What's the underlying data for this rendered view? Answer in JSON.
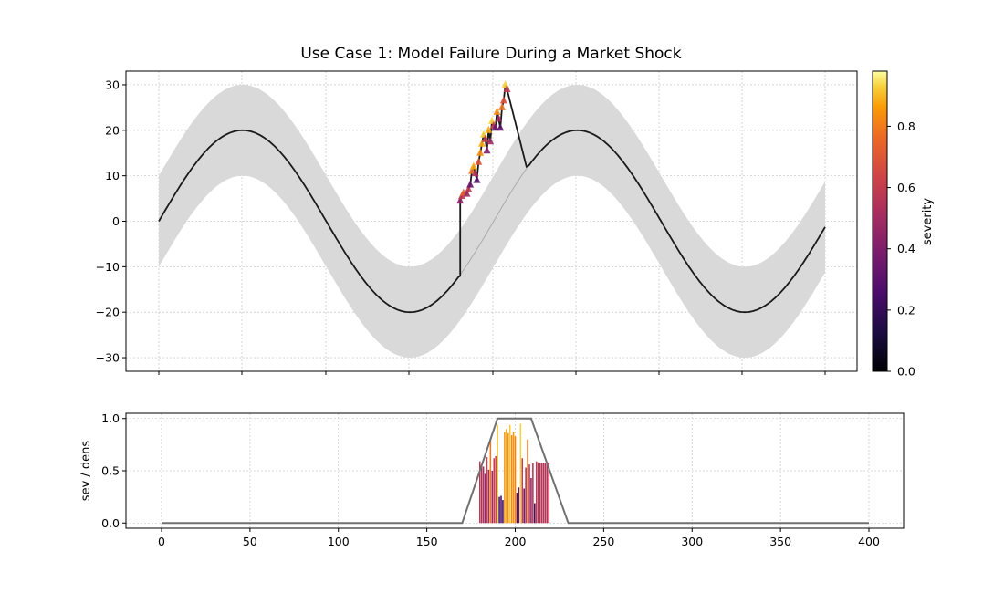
{
  "chart_data": [
    {
      "type": "line",
      "title": "Use Case 1: Model Failure During a Market Shock",
      "xlabel": "",
      "ylabel": "",
      "xlim": [
        -20,
        420
      ],
      "ylim": [
        -33,
        33
      ],
      "xticks": [
        0,
        50,
        100,
        150,
        200,
        250,
        300,
        350,
        400
      ],
      "yticks": [
        -30,
        -20,
        -10,
        0,
        10,
        20,
        30
      ],
      "ytick_labels": [
        "−30",
        "−20",
        "−10",
        "0",
        "10",
        "20",
        "30"
      ],
      "grid": true,
      "baseline": {
        "amplitude": 20,
        "period": 200,
        "x_range": [
          0,
          398
        ],
        "band_half_width": 10
      },
      "shock": {
        "x_start": 180,
        "x_end": 219,
        "start_value": 5,
        "end_value": 30.5,
        "return_value": 12
      },
      "band_color": "#d9d9d9",
      "line_color": "#1a1a1a",
      "marker": "triangle",
      "marker_points": [
        {
          "x": 180,
          "y": 4.5,
          "s": 0.45
        },
        {
          "x": 181,
          "y": 5.5,
          "s": 0.6
        },
        {
          "x": 182,
          "y": 6.2,
          "s": 0.75
        },
        {
          "x": 184,
          "y": 6.0,
          "s": 0.5
        },
        {
          "x": 185,
          "y": 7.0,
          "s": 0.6
        },
        {
          "x": 186,
          "y": 8.0,
          "s": 0.35
        },
        {
          "x": 187,
          "y": 11.0,
          "s": 0.8
        },
        {
          "x": 188,
          "y": 12.0,
          "s": 0.9
        },
        {
          "x": 189,
          "y": 10.5,
          "s": 0.55
        },
        {
          "x": 190,
          "y": 9.0,
          "s": 0.3
        },
        {
          "x": 191,
          "y": 13.0,
          "s": 0.7
        },
        {
          "x": 192,
          "y": 15.0,
          "s": 0.85
        },
        {
          "x": 193,
          "y": 17.0,
          "s": 0.9
        },
        {
          "x": 194,
          "y": 19.0,
          "s": 0.95
        },
        {
          "x": 195,
          "y": 18.0,
          "s": 0.6
        },
        {
          "x": 196,
          "y": 15.5,
          "s": 0.4
        },
        {
          "x": 197,
          "y": 20.0,
          "s": 0.9
        },
        {
          "x": 198,
          "y": 17.5,
          "s": 0.5
        },
        {
          "x": 199,
          "y": 22.0,
          "s": 0.95
        },
        {
          "x": 200,
          "y": 21.0,
          "s": 0.6
        },
        {
          "x": 201,
          "y": 20.5,
          "s": 0.35
        },
        {
          "x": 202,
          "y": 24.0,
          "s": 0.85
        },
        {
          "x": 203,
          "y": 22.5,
          "s": 0.5
        },
        {
          "x": 204,
          "y": 20.5,
          "s": 0.3
        },
        {
          "x": 205,
          "y": 25.0,
          "s": 0.8
        },
        {
          "x": 206,
          "y": 26.5,
          "s": 0.7
        },
        {
          "x": 207,
          "y": 30.0,
          "s": 0.95
        },
        {
          "x": 208,
          "y": 29.0,
          "s": 0.6
        }
      ],
      "colorbar": {
        "label": "severity",
        "min": 0.0,
        "max": 0.98,
        "ticks": [
          0.0,
          0.2,
          0.4,
          0.6,
          0.8
        ],
        "tick_labels": [
          "0.0",
          "0.2",
          "0.4",
          "0.6",
          "0.8"
        ],
        "colormap": "inferno"
      }
    },
    {
      "type": "bar",
      "title": "",
      "xlabel": "",
      "ylabel": "sev / dens",
      "xlim": [
        -20,
        420
      ],
      "ylim": [
        -0.05,
        1.05
      ],
      "xticks": [
        0,
        50,
        100,
        150,
        200,
        250,
        300,
        350,
        400
      ],
      "xtick_labels": [
        "0",
        "50",
        "100",
        "150",
        "200",
        "250",
        "300",
        "350",
        "400"
      ],
      "yticks": [
        0.0,
        0.5,
        1.0
      ],
      "ytick_labels": [
        "0.0",
        "0.5",
        "1.0"
      ],
      "grid": true,
      "bars": {
        "x": [
          180,
          181,
          182,
          183,
          184,
          185,
          186,
          187,
          188,
          189,
          190,
          191,
          192,
          193,
          194,
          195,
          196,
          197,
          198,
          199,
          200,
          201,
          202,
          203,
          204,
          205,
          206,
          207,
          208,
          209,
          210,
          211,
          212,
          213,
          214,
          215,
          216,
          217,
          218,
          219
        ],
        "values": [
          0.59,
          0.54,
          0.54,
          0.47,
          0.63,
          0.51,
          0.81,
          0.5,
          0.62,
          0.64,
          0.94,
          0.25,
          0.26,
          0.22,
          0.87,
          0.9,
          0.86,
          0.94,
          0.84,
          0.87,
          0.83,
          0.29,
          0.34,
          0.95,
          0.62,
          0.33,
          0.53,
          0.8,
          0.56,
          0.43,
          0.57,
          0.19,
          0.59,
          0.58,
          0.57,
          0.57,
          0.57,
          0.57,
          0.57,
          0.57
        ],
        "color_by": "value",
        "colormap": "inferno"
      },
      "density_line": {
        "x": [
          0,
          170,
          190,
          209,
          230,
          400
        ],
        "y": [
          0,
          0,
          1.0,
          1.0,
          0,
          0
        ],
        "color": "#707070"
      }
    }
  ]
}
